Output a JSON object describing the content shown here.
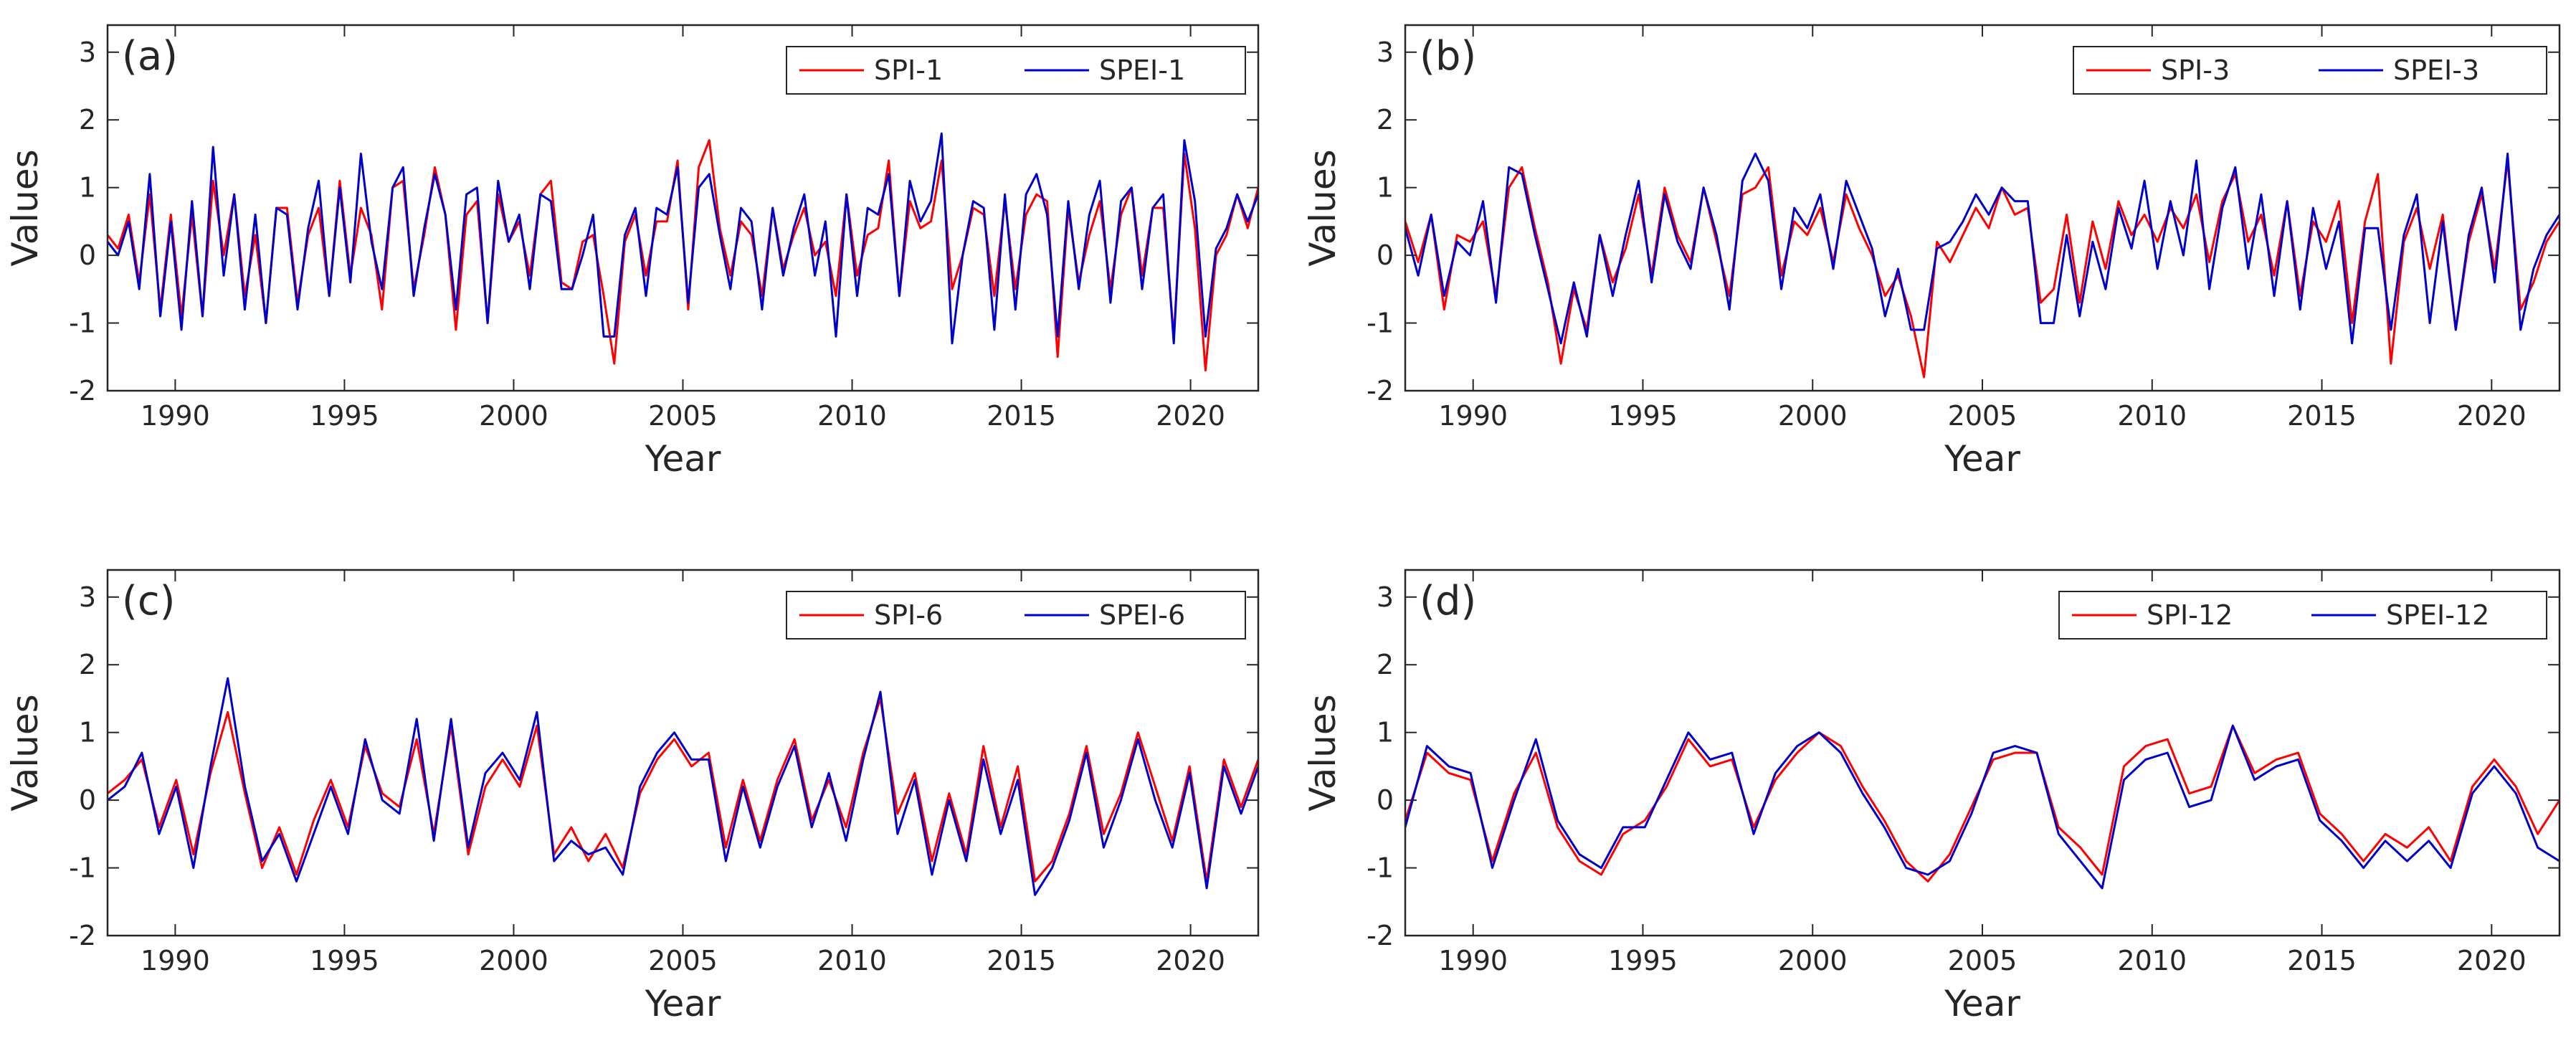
{
  "figure": {
    "title": ""
  },
  "chart_data": [
    {
      "type": "line",
      "panel": "(a)",
      "xlabel": "Year",
      "ylabel": "Values",
      "xlim": [
        1988,
        2022
      ],
      "ylim": [
        -2,
        3.4
      ],
      "xticks": [
        1990,
        1995,
        2000,
        2005,
        2010,
        2015,
        2020
      ],
      "yticks": [
        -2,
        -1,
        0,
        1,
        2,
        3
      ],
      "legend_position": "top-right",
      "timescale_months": 1,
      "series": [
        {
          "name": "SPI-1",
          "color": "#ff0000",
          "values": [
            0.3,
            0.1,
            0.6,
            -0.4,
            0.9,
            -0.8,
            0.6,
            -0.9,
            0.6,
            -0.9,
            1.1,
            0.0,
            0.9,
            -0.6,
            0.3,
            -1.0,
            0.7,
            0.7,
            -0.7,
            0.3,
            0.7,
            -0.6,
            1.1,
            -0.3,
            0.7,
            0.3,
            -0.8,
            1.0,
            1.1,
            -0.5,
            0.3,
            1.3,
            0.6,
            -1.1,
            0.6,
            0.8,
            -1.0,
            0.9,
            0.2,
            0.5,
            -0.3,
            0.9,
            1.1,
            -0.4,
            -0.5,
            0.2,
            0.3,
            -0.6,
            -1.6,
            0.2,
            0.6,
            -0.3,
            0.5,
            0.5,
            1.4,
            -0.8,
            1.3,
            1.7,
            0.4,
            -0.3,
            0.5,
            0.3,
            -0.6,
            0.7,
            -0.2,
            0.3,
            0.7,
            0.0,
            0.2,
            -0.6,
            0.9,
            -0.3,
            0.3,
            0.4,
            1.4,
            -0.6,
            0.8,
            0.4,
            0.5,
            1.4,
            -0.5,
            0.0,
            0.7,
            0.6,
            -0.6,
            0.8,
            -0.5,
            0.6,
            0.9,
            0.8,
            -1.5,
            0.7,
            -0.4,
            0.3,
            0.8,
            -0.5,
            0.6,
            1.0,
            -0.3,
            0.7,
            0.7,
            -1.2,
            1.5,
            0.4,
            -1.7,
            0.0,
            0.3,
            0.9,
            0.4,
            1.0
          ]
        },
        {
          "name": "SPEI-1",
          "color": "#0000cc",
          "values": [
            0.2,
            0.0,
            0.5,
            -0.5,
            1.2,
            -0.9,
            0.5,
            -1.1,
            0.8,
            -0.9,
            1.6,
            -0.3,
            0.9,
            -0.8,
            0.6,
            -1.0,
            0.7,
            0.6,
            -0.8,
            0.4,
            1.1,
            -0.6,
            1.0,
            -0.4,
            1.5,
            0.2,
            -0.5,
            1.0,
            1.3,
            -0.6,
            0.4,
            1.2,
            0.6,
            -0.8,
            0.9,
            1.0,
            -1.0,
            1.1,
            0.2,
            0.6,
            -0.5,
            0.9,
            0.8,
            -0.5,
            -0.5,
            0.0,
            0.6,
            -1.2,
            -1.2,
            0.3,
            0.7,
            -0.6,
            0.7,
            0.6,
            1.3,
            -0.7,
            1.0,
            1.2,
            0.3,
            -0.5,
            0.7,
            0.5,
            -0.8,
            0.7,
            -0.3,
            0.4,
            0.9,
            -0.3,
            0.5,
            -1.2,
            0.9,
            -0.6,
            0.7,
            0.6,
            1.2,
            -0.6,
            1.1,
            0.5,
            0.8,
            1.8,
            -1.3,
            0.0,
            0.8,
            0.7,
            -1.1,
            0.9,
            -0.8,
            0.9,
            1.2,
            0.6,
            -1.2,
            0.8,
            -0.5,
            0.6,
            1.1,
            -0.7,
            0.8,
            1.0,
            -0.5,
            0.7,
            0.9,
            -1.3,
            1.7,
            0.8,
            -1.2,
            0.1,
            0.4,
            0.9,
            0.5,
            0.9
          ]
        }
      ]
    },
    {
      "type": "line",
      "panel": "(b)",
      "xlabel": "Year",
      "ylabel": "Values",
      "xlim": [
        1988,
        2022
      ],
      "ylim": [
        -2,
        3.4
      ],
      "xticks": [
        1990,
        1995,
        2000,
        2005,
        2010,
        2015,
        2020
      ],
      "yticks": [
        -2,
        -1,
        0,
        1,
        2,
        3
      ],
      "legend_position": "top-right",
      "timescale_months": 3,
      "series": [
        {
          "name": "SPI-3",
          "color": "#ff0000",
          "values": [
            0.5,
            -0.1,
            0.6,
            -0.8,
            0.3,
            0.2,
            0.5,
            -0.6,
            1.0,
            1.3,
            0.4,
            -0.4,
            -1.6,
            -0.5,
            -1.1,
            0.3,
            -0.4,
            0.1,
            0.9,
            -0.3,
            1.0,
            0.3,
            -0.1,
            1.0,
            0.2,
            -0.6,
            0.9,
            1.0,
            1.3,
            -0.3,
            0.5,
            0.3,
            0.7,
            -0.1,
            0.9,
            0.4,
            0.0,
            -0.6,
            -0.3,
            -0.9,
            -1.8,
            0.2,
            -0.1,
            0.3,
            0.7,
            0.4,
            1.0,
            0.6,
            0.7,
            -0.7,
            -0.5,
            0.6,
            -0.7,
            0.5,
            -0.2,
            0.8,
            0.3,
            0.6,
            0.2,
            0.7,
            0.4,
            0.9,
            -0.1,
            0.8,
            1.2,
            0.2,
            0.6,
            -0.3,
            0.8,
            -0.6,
            0.5,
            0.2,
            0.8,
            -1.0,
            0.5,
            1.2,
            -1.6,
            0.2,
            0.7,
            -0.2,
            0.6,
            -1.1,
            0.2,
            0.9,
            -0.2,
            1.4,
            -0.8,
            -0.4,
            0.2,
            0.5
          ]
        },
        {
          "name": "SPEI-3",
          "color": "#0000cc",
          "values": [
            0.4,
            -0.3,
            0.6,
            -0.6,
            0.2,
            0.0,
            0.8,
            -0.7,
            1.3,
            1.2,
            0.3,
            -0.5,
            -1.3,
            -0.4,
            -1.2,
            0.3,
            -0.6,
            0.3,
            1.1,
            -0.4,
            0.9,
            0.2,
            -0.2,
            1.0,
            0.3,
            -0.8,
            1.1,
            1.5,
            1.1,
            -0.5,
            0.7,
            0.4,
            0.9,
            -0.2,
            1.1,
            0.6,
            0.1,
            -0.9,
            -0.2,
            -1.1,
            -1.1,
            0.1,
            0.2,
            0.5,
            0.9,
            0.6,
            1.0,
            0.8,
            0.8,
            -1.0,
            -1.0,
            0.3,
            -0.9,
            0.2,
            -0.5,
            0.7,
            0.1,
            1.1,
            -0.2,
            0.8,
            0.0,
            1.4,
            -0.5,
            0.7,
            1.3,
            -0.2,
            0.9,
            -0.6,
            0.8,
            -0.8,
            0.7,
            -0.2,
            0.5,
            -1.3,
            0.4,
            0.4,
            -1.1,
            0.3,
            0.9,
            -1.0,
            0.5,
            -1.1,
            0.3,
            1.0,
            -0.4,
            1.5,
            -1.1,
            -0.2,
            0.3,
            0.6
          ]
        }
      ]
    },
    {
      "type": "line",
      "panel": "(c)",
      "xlabel": "Year",
      "ylabel": "Values",
      "xlim": [
        1988,
        2022
      ],
      "ylim": [
        -2,
        3.4
      ],
      "xticks": [
        1990,
        1995,
        2000,
        2005,
        2010,
        2015,
        2020
      ],
      "yticks": [
        -2,
        -1,
        0,
        1,
        2,
        3
      ],
      "legend_position": "top-right",
      "timescale_months": 6,
      "series": [
        {
          "name": "SPI-6",
          "color": "#ff0000",
          "values": [
            0.1,
            0.3,
            0.6,
            -0.4,
            0.3,
            -0.8,
            0.4,
            1.3,
            0.1,
            -1.0,
            -0.4,
            -1.1,
            -0.3,
            0.3,
            -0.4,
            0.8,
            0.1,
            -0.1,
            0.9,
            -0.5,
            1.1,
            -0.8,
            0.2,
            0.6,
            0.2,
            1.1,
            -0.8,
            -0.4,
            -0.9,
            -0.5,
            -1.0,
            0.1,
            0.6,
            0.9,
            0.5,
            0.7,
            -0.7,
            0.3,
            -0.6,
            0.3,
            0.9,
            -0.3,
            0.3,
            -0.4,
            0.7,
            1.5,
            -0.2,
            0.4,
            -0.9,
            0.1,
            -0.8,
            0.8,
            -0.4,
            0.5,
            -1.2,
            -0.9,
            -0.2,
            0.8,
            -0.5,
            0.1,
            1.0,
            0.2,
            -0.6,
            0.5,
            -1.2,
            0.6,
            -0.1,
            0.6
          ]
        },
        {
          "name": "SPEI-6",
          "color": "#0000cc",
          "values": [
            0.0,
            0.2,
            0.7,
            -0.5,
            0.2,
            -1.0,
            0.5,
            1.8,
            0.2,
            -0.9,
            -0.5,
            -1.2,
            -0.5,
            0.2,
            -0.5,
            0.9,
            0.0,
            -0.2,
            1.2,
            -0.6,
            1.2,
            -0.7,
            0.4,
            0.7,
            0.3,
            1.3,
            -0.9,
            -0.6,
            -0.8,
            -0.7,
            -1.1,
            0.2,
            0.7,
            1.0,
            0.6,
            0.6,
            -0.9,
            0.2,
            -0.7,
            0.2,
            0.8,
            -0.4,
            0.4,
            -0.6,
            0.6,
            1.6,
            -0.5,
            0.3,
            -1.1,
            0.0,
            -0.9,
            0.6,
            -0.5,
            0.3,
            -1.4,
            -1.0,
            -0.3,
            0.7,
            -0.7,
            0.0,
            0.9,
            0.0,
            -0.7,
            0.4,
            -1.3,
            0.5,
            -0.2,
            0.5
          ]
        }
      ]
    },
    {
      "type": "line",
      "panel": "(d)",
      "xlabel": "Year",
      "ylabel": "Values",
      "xlim": [
        1988,
        2022
      ],
      "ylim": [
        -2,
        3.4
      ],
      "xticks": [
        1990,
        1995,
        2000,
        2005,
        2010,
        2015,
        2020
      ],
      "yticks": [
        -2,
        -1,
        0,
        1,
        2,
        3
      ],
      "legend_position": "top-right",
      "timescale_months": 12,
      "series": [
        {
          "name": "SPI-12",
          "color": "#ff0000",
          "values": [
            -0.3,
            0.7,
            0.4,
            0.3,
            -0.9,
            0.1,
            0.7,
            -0.4,
            -0.9,
            -1.1,
            -0.5,
            -0.3,
            0.2,
            0.9,
            0.5,
            0.6,
            -0.4,
            0.3,
            0.7,
            1.0,
            0.8,
            0.2,
            -0.3,
            -0.9,
            -1.2,
            -0.8,
            -0.1,
            0.6,
            0.7,
            0.7,
            -0.4,
            -0.7,
            -1.1,
            0.5,
            0.8,
            0.9,
            0.1,
            0.2,
            1.1,
            0.4,
            0.6,
            0.7,
            -0.2,
            -0.5,
            -0.9,
            -0.5,
            -0.7,
            -0.4,
            -0.9,
            0.2,
            0.6,
            0.2,
            -0.5,
            0.0
          ]
        },
        {
          "name": "SPEI-12",
          "color": "#0000cc",
          "values": [
            -0.4,
            0.8,
            0.5,
            0.4,
            -1.0,
            0.0,
            0.9,
            -0.3,
            -0.8,
            -1.0,
            -0.4,
            -0.4,
            0.3,
            1.0,
            0.6,
            0.7,
            -0.5,
            0.4,
            0.8,
            1.0,
            0.7,
            0.1,
            -0.4,
            -1.0,
            -1.1,
            -0.9,
            -0.2,
            0.7,
            0.8,
            0.7,
            -0.5,
            -0.9,
            -1.3,
            0.3,
            0.6,
            0.7,
            -0.1,
            0.0,
            1.1,
            0.3,
            0.5,
            0.6,
            -0.3,
            -0.6,
            -1.0,
            -0.6,
            -0.9,
            -0.6,
            -1.0,
            0.1,
            0.5,
            0.1,
            -0.7,
            -0.9
          ]
        }
      ]
    }
  ]
}
